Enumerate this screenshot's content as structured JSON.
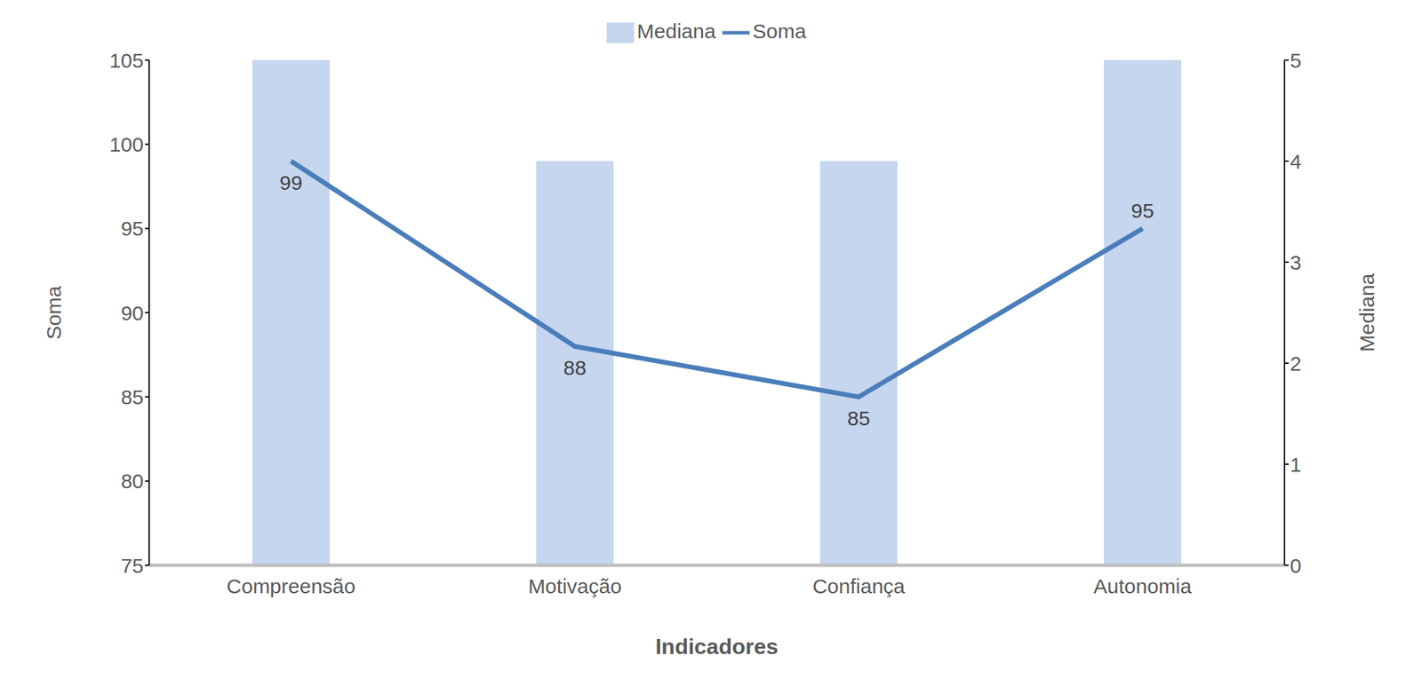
{
  "chart_data": {
    "type": "combo",
    "x_label": "Indicadores",
    "y_label": "Soma",
    "y2_label": "Mediana",
    "categories": [
      "Compreensão",
      "Motivação",
      "Confiança",
      "Autonomia"
    ],
    "series": [
      {
        "name": "Mediana",
        "type": "bar",
        "axis": "y2",
        "color": "#c5d6ee",
        "values": [
          5,
          4,
          4,
          5
        ]
      },
      {
        "name": "Soma",
        "type": "line",
        "color": "#4a7ebb",
        "values": [
          99,
          88,
          85,
          95
        ],
        "data_labels": true
      }
    ],
    "ylim": [
      75,
      105
    ],
    "yticks": [
      75,
      80,
      85,
      90,
      95,
      100,
      105
    ],
    "y2lim": [
      0,
      5
    ],
    "y2ticks": [
      0,
      1,
      2,
      3,
      4,
      5
    ],
    "legend": "top",
    "grid": false
  }
}
